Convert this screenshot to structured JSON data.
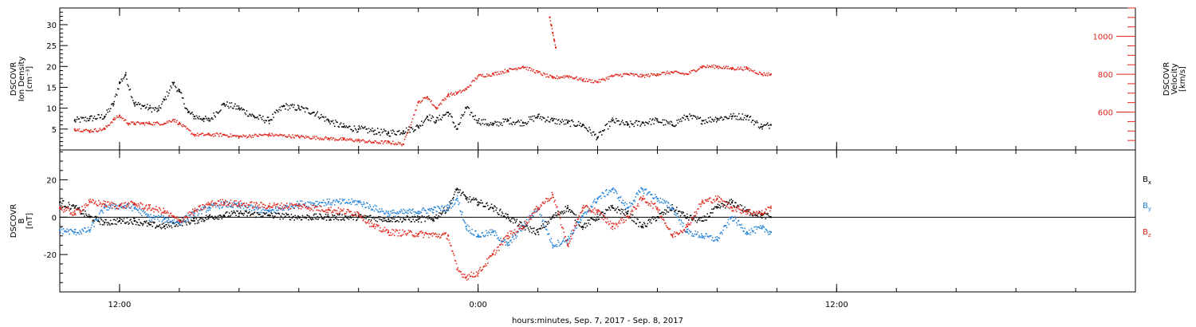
{
  "chart_data": [
    {
      "type": "scatter",
      "panel": "plasma",
      "x_range_hours": [
        -2,
        34
      ],
      "x_ticks": [
        {
          "t": 0,
          "label": "12:00"
        },
        {
          "t": 12,
          "label": "0:00"
        },
        {
          "t": 24,
          "label": "12:00"
        }
      ],
      "left_axis": {
        "label_lines": [
          "DSCOVR",
          "Ion Density",
          "[cm⁻³]"
        ],
        "range": [
          0,
          34
        ],
        "ticks": [
          5,
          10,
          15,
          20,
          25,
          30
        ]
      },
      "right_axis": {
        "label_lines": [
          "DSCOVR",
          "Velocity",
          "[km/s]"
        ],
        "range": [
          400,
          1150
        ],
        "ticks": [
          600,
          800,
          1000
        ],
        "color": "#e0251b"
      },
      "series": [
        {
          "color": "#000000",
          "axis": "left",
          "x": [
            -1.5,
            -1.0,
            -0.5,
            -0.2,
            0.0,
            0.2,
            0.5,
            0.8,
            1.0,
            1.3,
            1.5,
            1.8,
            2.0,
            2.3,
            2.5,
            2.8,
            3.0,
            3.5,
            4.0,
            4.5,
            5.0,
            5.5,
            6.0,
            6.5,
            7.0,
            7.5,
            8.0,
            8.5,
            9.0,
            9.5,
            10.0,
            10.3,
            10.6,
            11.0,
            11.3,
            11.6,
            12.0,
            12.5,
            13.0,
            13.5,
            14.0,
            14.5,
            15.0,
            15.5,
            16.0,
            16.5,
            17.0,
            17.5,
            18.0,
            18.5,
            19.0,
            19.5,
            20.0,
            20.5,
            21.0,
            21.5,
            21.8
          ],
          "y": [
            7,
            7.5,
            8,
            11,
            16,
            18,
            11,
            10.5,
            10,
            9.5,
            12,
            16,
            14,
            9,
            8,
            7.5,
            7,
            11,
            10,
            8,
            7,
            10.5,
            10,
            9,
            7,
            5.5,
            5,
            4.5,
            4,
            4.5,
            5.5,
            8,
            7,
            9,
            5,
            10,
            7,
            6,
            7,
            6.5,
            8,
            7,
            6.5,
            6,
            3,
            7,
            6,
            6.5,
            7,
            6,
            8,
            7,
            7.5,
            8,
            8,
            5.5,
            6
          ]
        },
        {
          "color": "#e0251b",
          "axis": "right",
          "x": [
            -1.5,
            -1.0,
            -0.5,
            -0.2,
            0.0,
            0.3,
            0.5,
            0.8,
            1.0,
            1.5,
            1.8,
            2.0,
            2.5,
            3.0,
            3.5,
            4.0,
            5.0,
            6.0,
            7.0,
            7.5,
            8.0,
            8.5,
            9.0,
            9.5,
            10.0,
            10.3,
            10.6,
            11.0,
            11.3,
            11.6,
            12.0,
            12.5,
            13.0,
            13.5,
            14.0,
            14.5,
            15.0,
            15.5,
            16.0,
            16.5,
            17.0,
            17.5,
            18.0,
            18.5,
            19.0,
            19.5,
            20.0,
            20.5,
            21.0,
            21.5,
            21.8
          ],
          "y": [
            510,
            500,
            510,
            560,
            580,
            540,
            540,
            540,
            540,
            540,
            560,
            540,
            480,
            480,
            480,
            470,
            480,
            470,
            460,
            455,
            450,
            440,
            440,
            430,
            650,
            680,
            620,
            690,
            700,
            720,
            790,
            800,
            820,
            840,
            810,
            780,
            790,
            770,
            760,
            790,
            800,
            790,
            800,
            810,
            800,
            840,
            840,
            830,
            830,
            800,
            800
          ]
        },
        {
          "color": "#e0251b",
          "axis": "right",
          "x": [
            14.4,
            14.45,
            14.5,
            14.55,
            14.6
          ],
          "y": [
            1100,
            1060,
            1020,
            980,
            940
          ]
        }
      ]
    },
    {
      "type": "scatter",
      "panel": "magnetic field",
      "x_range_hours": [
        -2,
        34
      ],
      "x_label": "hours:minutes, Sep.  7, 2017 - Sep.  8, 2017",
      "left_axis": {
        "label_lines": [
          "DSCOVR",
          "B",
          "[nT]"
        ],
        "range": [
          -40,
          36
        ],
        "ticks": [
          -20,
          0,
          20
        ],
        "zero_line": true
      },
      "legend": [
        {
          "name": "Bx",
          "sub": "x",
          "base": "B",
          "color": "#000000"
        },
        {
          "name": "By",
          "sub": "y",
          "base": "B",
          "color": "#1f7fd6"
        },
        {
          "name": "Bz",
          "sub": "z",
          "base": "B",
          "color": "#e0251b"
        }
      ],
      "series": [
        {
          "name": "Bx",
          "color": "#000000",
          "x": [
            -2,
            -1.5,
            -1.0,
            -0.5,
            0.0,
            0.5,
            1.0,
            1.5,
            2.0,
            2.5,
            3.0,
            3.5,
            4.0,
            5.0,
            6.0,
            7.0,
            8.0,
            9.0,
            10.0,
            10.5,
            11.0,
            11.3,
            11.6,
            12.0,
            12.5,
            13.0,
            13.5,
            14.0,
            14.5,
            15.0,
            15.5,
            16.0,
            16.5,
            17.0,
            17.5,
            18.0,
            18.5,
            19.0,
            19.5,
            20.0,
            20.5,
            21.0,
            21.5,
            21.8
          ],
          "y": [
            8,
            5,
            0,
            -3,
            -2,
            -2,
            -4,
            -5,
            -3,
            -2,
            0,
            1,
            2,
            1,
            0,
            0,
            0,
            -1,
            -1,
            -1,
            5,
            15,
            10,
            8,
            5,
            0,
            -5,
            -8,
            0,
            5,
            -5,
            0,
            5,
            2,
            -5,
            0,
            5,
            0,
            -2,
            5,
            8,
            3,
            1,
            0
          ]
        },
        {
          "name": "By",
          "color": "#1f7fd6",
          "x": [
            -2,
            -1.5,
            -1.0,
            -0.5,
            0.0,
            0.5,
            1.0,
            1.5,
            2.0,
            2.5,
            3.0,
            3.5,
            4.0,
            5.0,
            6.0,
            7.0,
            8.0,
            9.0,
            10.0,
            10.5,
            11.0,
            11.3,
            11.6,
            12.0,
            12.5,
            13.0,
            13.5,
            14.0,
            14.5,
            15.0,
            15.5,
            16.0,
            16.5,
            17.0,
            17.5,
            18.0,
            18.5,
            19.0,
            19.5,
            20.0,
            20.5,
            21.0,
            21.5,
            21.8
          ],
          "y": [
            -7,
            -8,
            -7,
            5,
            6,
            5,
            0,
            -1,
            -3,
            2,
            5,
            7,
            6,
            3,
            7,
            8,
            8,
            2,
            3,
            4,
            5,
            10,
            -5,
            -10,
            -8,
            -15,
            -5,
            5,
            -15,
            -12,
            0,
            10,
            15,
            5,
            15,
            10,
            5,
            -8,
            -10,
            -12,
            0,
            -8,
            -6,
            -8
          ]
        },
        {
          "name": "Bz",
          "color": "#e0251b",
          "x": [
            -2,
            -1.5,
            -1.0,
            -0.5,
            0.0,
            0.5,
            1.0,
            1.5,
            2.0,
            2.5,
            3.0,
            3.5,
            4.0,
            5.0,
            6.0,
            7.0,
            8.0,
            8.5,
            9.0,
            10.0,
            11.0,
            11.3,
            11.6,
            12.0,
            12.5,
            13.0,
            13.5,
            14.0,
            14.5,
            15.0,
            15.5,
            16.0,
            16.5,
            17.0,
            17.5,
            18.0,
            18.5,
            19.0,
            19.5,
            20.0,
            20.5,
            21.0,
            21.5,
            21.8
          ],
          "y": [
            5,
            2,
            8,
            7,
            6,
            7,
            5,
            3,
            -2,
            3,
            7,
            8,
            7,
            6,
            6,
            4,
            2,
            -5,
            -8,
            -9,
            -10,
            -28,
            -32,
            -30,
            -20,
            -10,
            -5,
            5,
            12,
            -15,
            5,
            3,
            -5,
            0,
            10,
            5,
            -10,
            -5,
            8,
            10,
            5,
            3,
            2,
            5
          ]
        }
      ]
    }
  ]
}
